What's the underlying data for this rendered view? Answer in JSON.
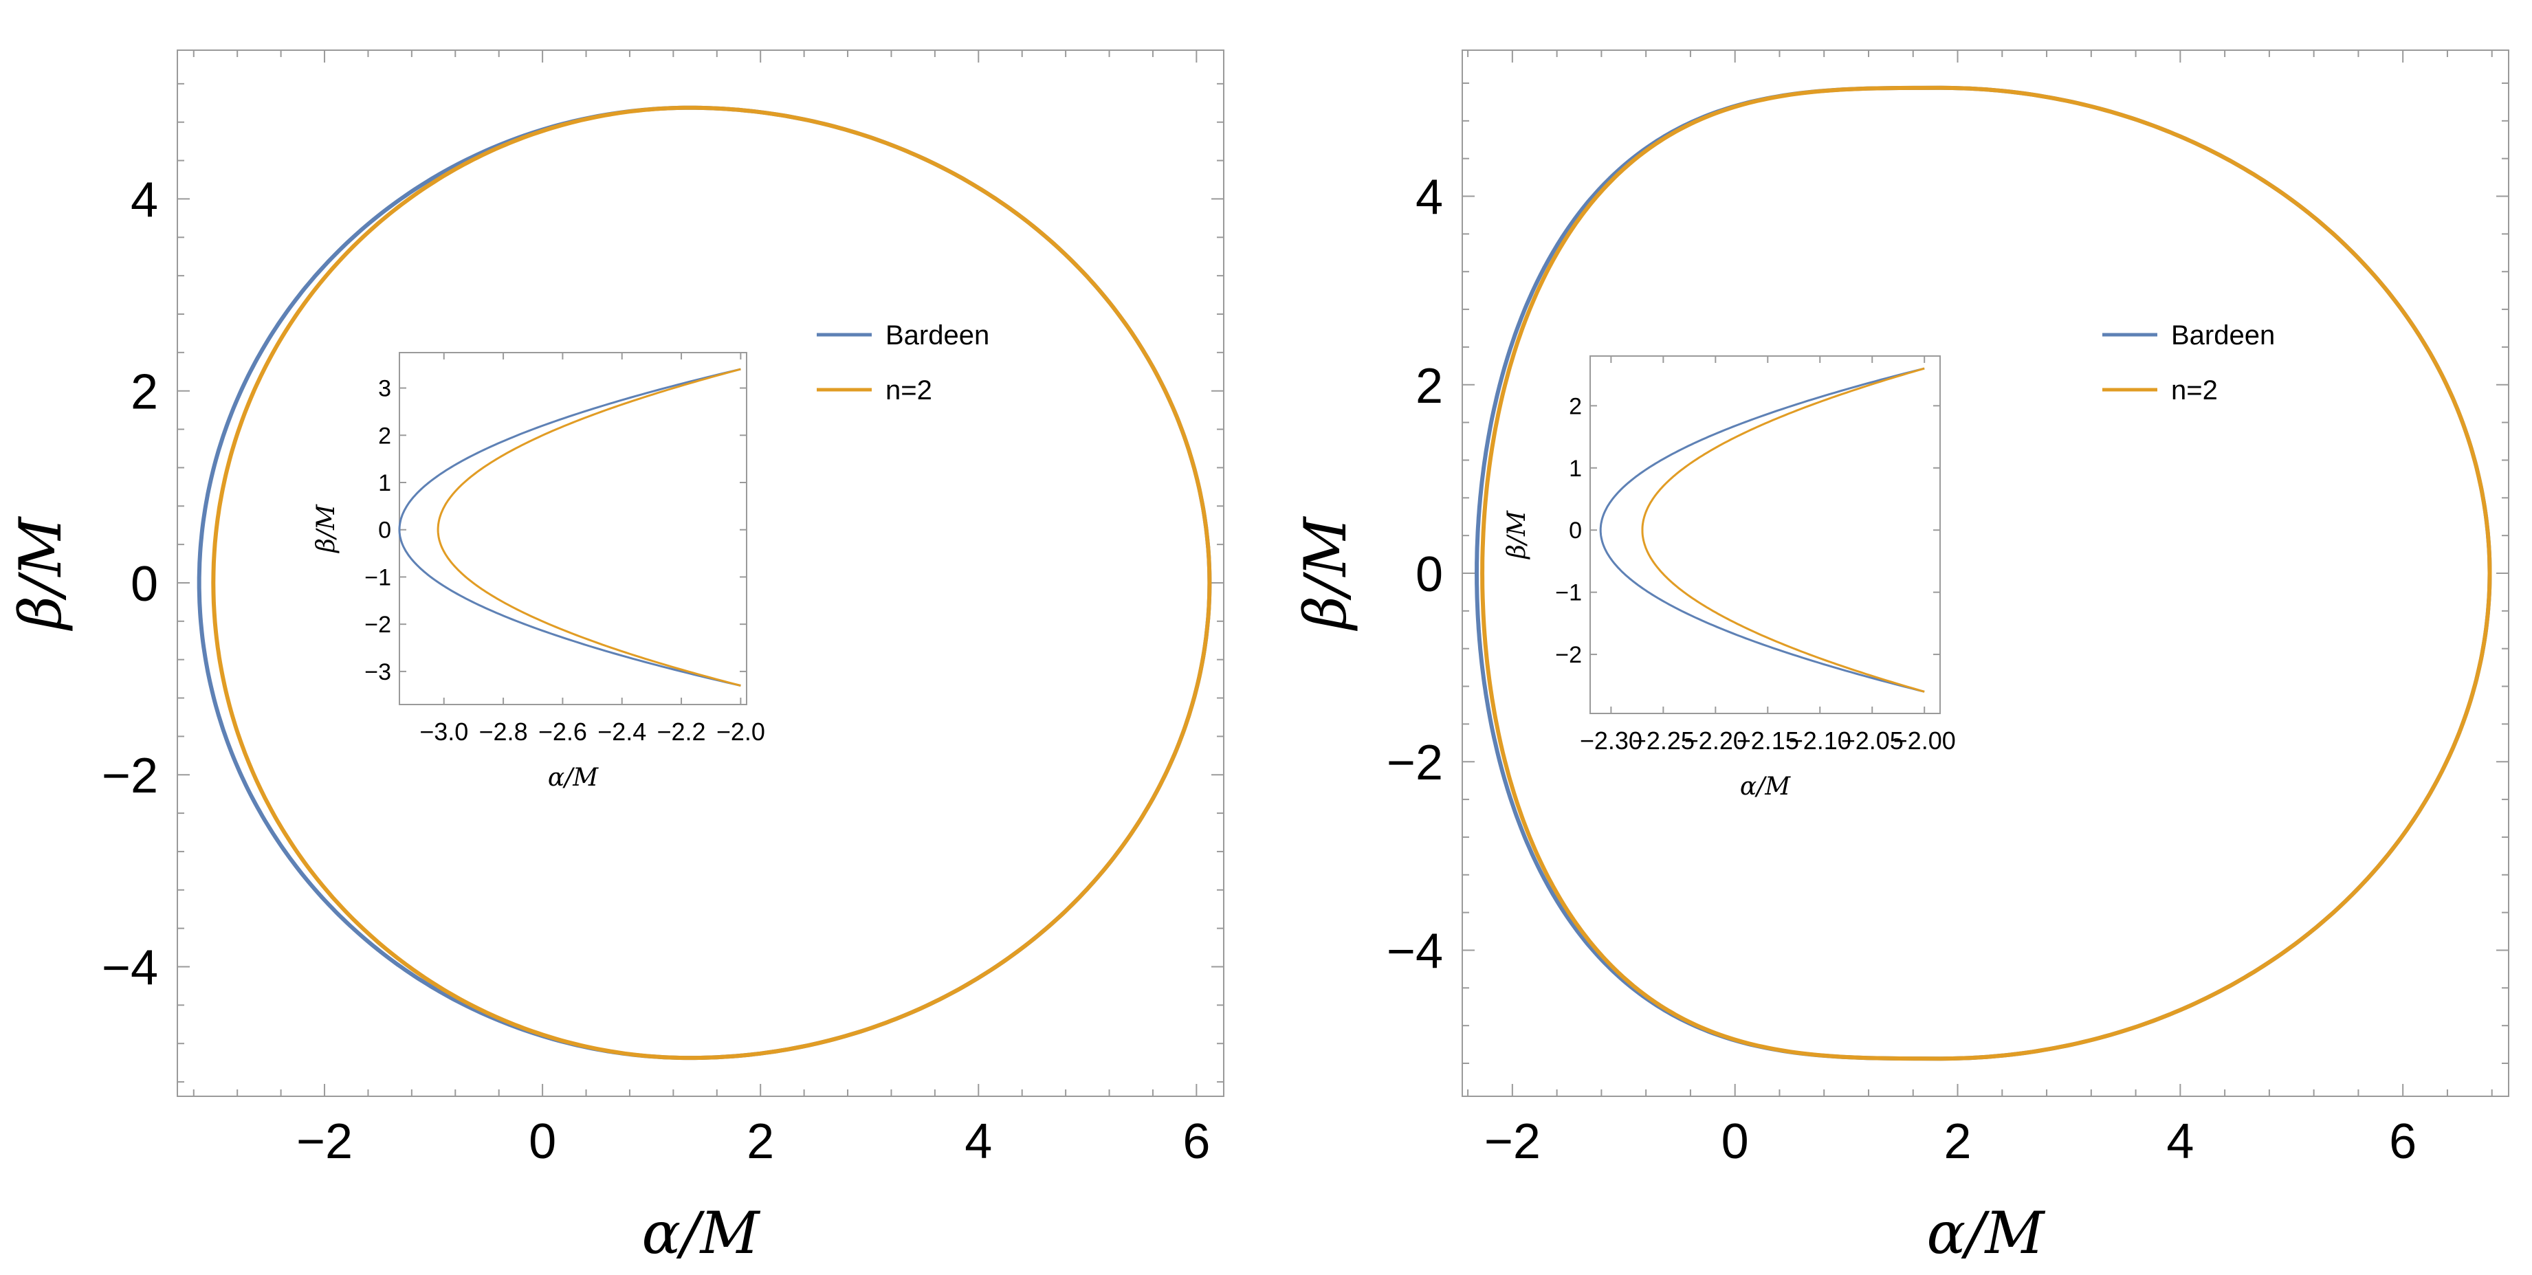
{
  "chart_data": [
    {
      "type": "line",
      "xlabel": "α/M",
      "ylabel": "β/M",
      "xlim": [
        -3.35,
        6.25
      ],
      "ylim": [
        -5.35,
        5.55
      ],
      "xticks": [
        -2,
        0,
        2,
        4,
        6
      ],
      "xtick_labels": [
        "−2",
        "0",
        "2",
        "4",
        "6"
      ],
      "yticks": [
        -4,
        -2,
        0,
        2,
        4
      ],
      "ytick_labels": [
        "−4",
        "−2",
        "0",
        "2",
        "4"
      ],
      "legend": {
        "placement": "right",
        "entries": [
          "Bardeen",
          "n=2"
        ]
      },
      "series": [
        {
          "name": "Bardeen",
          "color": "#5e81b5",
          "shadow": {
            "alpha_min": -3.15,
            "alpha_max": 6.12,
            "beta_max": 4.95,
            "alpha_at_beta_max": 1.35,
            "flatness": 0.0
          }
        },
        {
          "name": "n=2",
          "color": "#e19c24",
          "shadow": {
            "alpha_min": -3.02,
            "alpha_max": 6.12,
            "beta_max": 4.95,
            "alpha_at_beta_max": 1.35,
            "flatness": 0.0
          }
        }
      ],
      "inset": {
        "xlabel": "α/M",
        "ylabel": "β/M",
        "xlim": [
          -3.15,
          -1.98
        ],
        "ylim": [
          -3.7,
          3.75
        ],
        "xticks": [
          -3.0,
          -2.8,
          -2.6,
          -2.4,
          -2.2,
          -2.0
        ],
        "xtick_labels": [
          "−3.0",
          "−2.8",
          "−2.6",
          "−2.4",
          "−2.2",
          "−2.0"
        ],
        "yticks": [
          -3,
          -2,
          -1,
          0,
          1,
          2,
          3
        ],
        "ytick_labels": [
          "−3",
          "−2",
          "−1",
          "0",
          "1",
          "2",
          "3"
        ],
        "series": [
          {
            "name": "Bardeen",
            "color": "#5e81b5",
            "alpha_min": -3.15,
            "end_alpha": -2.0,
            "end_beta": 3.4,
            "end_beta_low": -3.3
          },
          {
            "name": "n=2",
            "color": "#e19c24",
            "alpha_min": -3.02,
            "end_alpha": -2.0,
            "end_beta": 3.4,
            "end_beta_low": -3.3
          }
        ]
      }
    },
    {
      "type": "line",
      "xlabel": "α/M",
      "ylabel": "β/M",
      "xlim": [
        -2.45,
        6.95
      ],
      "ylim": [
        -5.55,
        5.55
      ],
      "xticks": [
        -2,
        0,
        2,
        4,
        6
      ],
      "xtick_labels": [
        "−2",
        "0",
        "2",
        "4",
        "6"
      ],
      "yticks": [
        -4,
        -2,
        0,
        2,
        4
      ],
      "ytick_labels": [
        "−4",
        "−2",
        "0",
        "2",
        "4"
      ],
      "legend": {
        "placement": "right",
        "entries": [
          "Bardeen",
          "n=2"
        ]
      },
      "series": [
        {
          "name": "Bardeen",
          "color": "#5e81b5",
          "shadow": {
            "alpha_min": -2.32,
            "alpha_max": 6.78,
            "beta_max": 5.15,
            "alpha_at_beta_max": 1.85,
            "flatness": 0.55
          }
        },
        {
          "name": "n=2",
          "color": "#e19c24",
          "shadow": {
            "alpha_min": -2.27,
            "alpha_max": 6.78,
            "beta_max": 5.15,
            "alpha_at_beta_max": 1.85,
            "flatness": 0.55
          }
        }
      ],
      "inset": {
        "xlabel": "α/M",
        "ylabel": "β/M",
        "xlim": [
          -2.32,
          -1.985
        ],
        "ylim": [
          -2.95,
          2.8
        ],
        "xticks": [
          -2.3,
          -2.25,
          -2.2,
          -2.15,
          -2.1,
          -2.05,
          -2.0
        ],
        "xtick_labels": [
          "−2.30",
          "−2.25",
          "−2.20",
          "−2.15",
          "−2.10",
          "−2.05",
          "−2.00"
        ],
        "yticks": [
          -2,
          -1,
          0,
          1,
          2
        ],
        "ytick_labels": [
          "−2",
          "−1",
          "0",
          "1",
          "2"
        ],
        "series": [
          {
            "name": "Bardeen",
            "color": "#5e81b5",
            "alpha_min": -2.31,
            "end_alpha": -2.0,
            "end_beta": 2.6,
            "end_beta_low": -2.6
          },
          {
            "name": "n=2",
            "color": "#e19c24",
            "alpha_min": -2.27,
            "end_alpha": -2.0,
            "end_beta": 2.6,
            "end_beta_low": -2.6
          }
        ]
      }
    }
  ]
}
